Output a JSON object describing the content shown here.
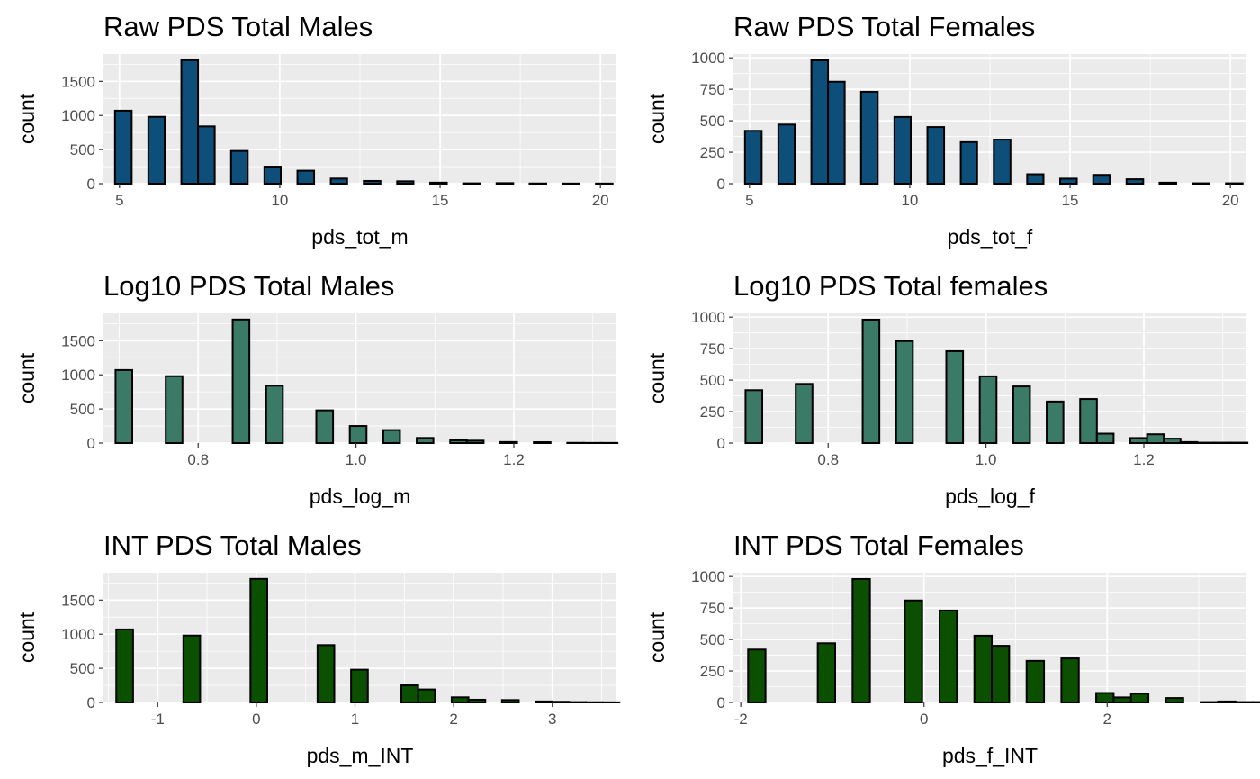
{
  "colors": {
    "panel_bg": "#EBEBEB",
    "grid_major": "#FFFFFF",
    "bar_outline": "#000000",
    "tick_label": "#4D4D4D",
    "axis_title": "#000000",
    "title": "#000000",
    "bar_raw": "#0D4F78",
    "bar_log": "#3A7A66",
    "bar_int": "#0B4F00"
  },
  "chart_data": [
    {
      "type": "histogram",
      "title": "Raw PDS Total Males",
      "xlabel": "pds_tot_m",
      "ylabel": "count",
      "fill_color": "#0D4F78",
      "xlim": [
        4.5,
        20.5
      ],
      "ylim": [
        0,
        1900
      ],
      "xticks": [
        5,
        10,
        15,
        20
      ],
      "xtick_labels": [
        "5",
        "10",
        "15",
        "20"
      ],
      "yticks": [
        0,
        500,
        1000,
        1500
      ],
      "ytick_labels": [
        "0",
        "500",
        "1000",
        "1500"
      ],
      "bins": [
        [
          4.86,
          5.38,
          1070
        ],
        [
          5.38,
          5.9,
          0
        ],
        [
          5.9,
          6.41,
          980
        ],
        [
          6.41,
          6.93,
          0
        ],
        [
          6.93,
          7.45,
          1810
        ],
        [
          7.45,
          7.97,
          840
        ],
        [
          7.97,
          8.48,
          0
        ],
        [
          8.48,
          9.0,
          480
        ],
        [
          9.0,
          9.52,
          0
        ],
        [
          9.52,
          10.03,
          250
        ],
        [
          10.03,
          10.55,
          0
        ],
        [
          10.55,
          11.07,
          190
        ],
        [
          11.07,
          11.59,
          0
        ],
        [
          11.59,
          12.1,
          75
        ],
        [
          12.1,
          12.62,
          0
        ],
        [
          12.62,
          13.14,
          40
        ],
        [
          13.14,
          13.66,
          0
        ],
        [
          13.66,
          14.17,
          35
        ],
        [
          14.17,
          14.69,
          0
        ],
        [
          14.69,
          15.21,
          15
        ],
        [
          15.21,
          15.72,
          0
        ],
        [
          15.72,
          16.24,
          5
        ],
        [
          16.24,
          16.76,
          0
        ],
        [
          16.76,
          17.28,
          8
        ],
        [
          17.28,
          17.79,
          0
        ],
        [
          17.79,
          18.31,
          3
        ],
        [
          18.31,
          18.83,
          0
        ],
        [
          18.83,
          19.34,
          2
        ],
        [
          19.34,
          19.86,
          0
        ],
        [
          19.86,
          20.38,
          2
        ]
      ]
    },
    {
      "type": "histogram",
      "title": "Raw PDS Total Females",
      "xlabel": "pds_tot_f",
      "ylabel": "count",
      "fill_color": "#0D4F78",
      "xlim": [
        4.5,
        20.5
      ],
      "ylim": [
        0,
        1030
      ],
      "xticks": [
        5,
        10,
        15,
        20
      ],
      "xtick_labels": [
        "5",
        "10",
        "15",
        "20"
      ],
      "yticks": [
        0,
        250,
        500,
        750,
        1000
      ],
      "ytick_labels": [
        "0",
        "250",
        "500",
        "750",
        "1000"
      ],
      "bins": [
        [
          4.86,
          5.38,
          420
        ],
        [
          5.38,
          5.9,
          0
        ],
        [
          5.9,
          6.41,
          470
        ],
        [
          6.41,
          6.93,
          0
        ],
        [
          6.93,
          7.45,
          980
        ],
        [
          7.45,
          7.97,
          810
        ],
        [
          7.97,
          8.48,
          0
        ],
        [
          8.48,
          9.0,
          730
        ],
        [
          9.0,
          9.52,
          0
        ],
        [
          9.52,
          10.03,
          530
        ],
        [
          10.03,
          10.55,
          0
        ],
        [
          10.55,
          11.07,
          450
        ],
        [
          11.07,
          11.59,
          0
        ],
        [
          11.59,
          12.1,
          330
        ],
        [
          12.1,
          12.62,
          0
        ],
        [
          12.62,
          13.14,
          350
        ],
        [
          13.14,
          13.66,
          0
        ],
        [
          13.66,
          14.17,
          75
        ],
        [
          14.17,
          14.69,
          0
        ],
        [
          14.69,
          15.21,
          40
        ],
        [
          15.21,
          15.72,
          0
        ],
        [
          15.72,
          16.24,
          70
        ],
        [
          16.24,
          16.76,
          0
        ],
        [
          16.76,
          17.28,
          35
        ],
        [
          17.28,
          17.79,
          0
        ],
        [
          17.79,
          18.31,
          8
        ],
        [
          18.31,
          18.83,
          0
        ],
        [
          18.83,
          19.34,
          3
        ],
        [
          19.34,
          19.86,
          0
        ],
        [
          19.86,
          20.38,
          3
        ]
      ]
    },
    {
      "type": "histogram",
      "title": "Log10 PDS Total Males",
      "xlabel": "pds_log_m",
      "ylabel": "count",
      "fill_color": "#3A7A66",
      "xlim": [
        0.68,
        1.33
      ],
      "ylim": [
        0,
        1900
      ],
      "xticks": [
        0.8,
        1.0,
        1.2
      ],
      "xtick_labels": [
        "0.8",
        "1.0",
        "1.2"
      ],
      "yticks": [
        0,
        500,
        1000,
        1500
      ],
      "ytick_labels": [
        "0",
        "500",
        "1000",
        "1500"
      ],
      "bins": [
        [
          0.6953,
          0.7165,
          1070
        ],
        [
          0.7165,
          0.7377,
          0
        ],
        [
          0.7377,
          0.7589,
          0
        ],
        [
          0.7589,
          0.7801,
          980
        ],
        [
          0.7801,
          0.8013,
          0
        ],
        [
          0.8013,
          0.8225,
          0
        ],
        [
          0.8225,
          0.8437,
          0
        ],
        [
          0.8437,
          0.8649,
          1810
        ],
        [
          0.8649,
          0.8861,
          0
        ],
        [
          0.8861,
          0.9073,
          840
        ],
        [
          0.9073,
          0.9285,
          0
        ],
        [
          0.9285,
          0.9497,
          0
        ],
        [
          0.9497,
          0.9709,
          480
        ],
        [
          0.9709,
          0.9921,
          0
        ],
        [
          0.9921,
          1.0133,
          250
        ],
        [
          1.0133,
          1.0345,
          0
        ],
        [
          1.0345,
          1.0557,
          190
        ],
        [
          1.0557,
          1.0769,
          0
        ],
        [
          1.0769,
          1.0981,
          75
        ],
        [
          1.0981,
          1.1193,
          0
        ],
        [
          1.1193,
          1.1405,
          40
        ],
        [
          1.1405,
          1.1617,
          35
        ],
        [
          1.1617,
          1.1829,
          0
        ],
        [
          1.1829,
          1.2041,
          15
        ],
        [
          1.2041,
          1.2253,
          0
        ],
        [
          1.2253,
          1.2465,
          13
        ],
        [
          1.2465,
          1.2677,
          0
        ],
        [
          1.2677,
          1.2889,
          3
        ],
        [
          1.2889,
          1.3101,
          2
        ],
        [
          1.3101,
          1.3313,
          2
        ]
      ]
    },
    {
      "type": "histogram",
      "title": "Log10 PDS Total females",
      "xlabel": "pds_log_f",
      "ylabel": "count",
      "fill_color": "#3A7A66",
      "xlim": [
        0.68,
        1.33
      ],
      "ylim": [
        0,
        1030
      ],
      "xticks": [
        0.8,
        1.0,
        1.2
      ],
      "xtick_labels": [
        "0.8",
        "1.0",
        "1.2"
      ],
      "yticks": [
        0,
        250,
        500,
        750,
        1000
      ],
      "ytick_labels": [
        "0",
        "250",
        "500",
        "750",
        "1000"
      ],
      "bins": [
        [
          0.6953,
          0.7165,
          420
        ],
        [
          0.7165,
          0.7377,
          0
        ],
        [
          0.7377,
          0.7589,
          0
        ],
        [
          0.7589,
          0.7801,
          470
        ],
        [
          0.7801,
          0.8013,
          0
        ],
        [
          0.8013,
          0.8225,
          0
        ],
        [
          0.8225,
          0.8437,
          0
        ],
        [
          0.8437,
          0.8649,
          980
        ],
        [
          0.8649,
          0.8861,
          0
        ],
        [
          0.8861,
          0.9073,
          810
        ],
        [
          0.9073,
          0.9285,
          0
        ],
        [
          0.9285,
          0.9497,
          0
        ],
        [
          0.9497,
          0.9709,
          730
        ],
        [
          0.9709,
          0.9921,
          0
        ],
        [
          0.9921,
          1.0133,
          530
        ],
        [
          1.0133,
          1.0345,
          0
        ],
        [
          1.0345,
          1.0557,
          450
        ],
        [
          1.0557,
          1.0769,
          0
        ],
        [
          1.0769,
          1.0981,
          330
        ],
        [
          1.0981,
          1.1193,
          0
        ],
        [
          1.1193,
          1.1405,
          350
        ],
        [
          1.1405,
          1.1617,
          75
        ],
        [
          1.1617,
          1.1829,
          0
        ],
        [
          1.1829,
          1.2041,
          40
        ],
        [
          1.2041,
          1.2253,
          70
        ],
        [
          1.2253,
          1.2465,
          35
        ],
        [
          1.2465,
          1.2677,
          8
        ],
        [
          1.2677,
          1.2889,
          3
        ],
        [
          1.2889,
          1.3101,
          3
        ],
        [
          1.3101,
          1.3313,
          3
        ]
      ]
    },
    {
      "type": "histogram",
      "title": "INT PDS Total Males",
      "xlabel": "pds_m_INT",
      "ylabel": "count",
      "fill_color": "#0B4F00",
      "xlim": [
        -1.55,
        3.65
      ],
      "ylim": [
        0,
        1900
      ],
      "xticks": [
        -1,
        0,
        1,
        2,
        3
      ],
      "xtick_labels": [
        "-1",
        "0",
        "1",
        "2",
        "3"
      ],
      "yticks": [
        0,
        500,
        1000,
        1500
      ],
      "ytick_labels": [
        "0",
        "500",
        "1000",
        "1500"
      ],
      "bins": [
        [
          -1.42,
          -1.25,
          1070
        ],
        [
          -1.25,
          -1.08,
          0
        ],
        [
          -1.08,
          -0.91,
          0
        ],
        [
          -0.91,
          -0.74,
          0
        ],
        [
          -0.74,
          -0.57,
          980
        ],
        [
          -0.57,
          -0.4,
          0
        ],
        [
          -0.4,
          -0.23,
          0
        ],
        [
          -0.23,
          -0.06,
          0
        ],
        [
          -0.06,
          0.11,
          1810
        ],
        [
          0.11,
          0.28,
          0
        ],
        [
          0.28,
          0.45,
          0
        ],
        [
          0.45,
          0.62,
          0
        ],
        [
          0.62,
          0.79,
          840
        ],
        [
          0.79,
          0.96,
          0
        ],
        [
          0.96,
          1.13,
          480
        ],
        [
          1.13,
          1.3,
          0
        ],
        [
          1.3,
          1.47,
          0
        ],
        [
          1.47,
          1.64,
          250
        ],
        [
          1.64,
          1.81,
          190
        ],
        [
          1.81,
          1.98,
          0
        ],
        [
          1.98,
          2.15,
          75
        ],
        [
          2.15,
          2.32,
          40
        ],
        [
          2.32,
          2.49,
          0
        ],
        [
          2.49,
          2.66,
          35
        ],
        [
          2.66,
          2.83,
          0
        ],
        [
          2.83,
          3.0,
          15
        ],
        [
          3.0,
          3.17,
          10
        ],
        [
          3.17,
          3.34,
          5
        ],
        [
          3.34,
          3.51,
          3
        ],
        [
          3.51,
          3.68,
          2
        ]
      ]
    },
    {
      "type": "histogram",
      "title": "INT PDS Total Females",
      "xlabel": "pds_f_INT",
      "ylabel": "count",
      "fill_color": "#0B4F00",
      "xlim": [
        -2.08,
        3.52
      ],
      "ylim": [
        0,
        1030
      ],
      "xticks": [
        -2,
        0,
        2
      ],
      "xtick_labels": [
        "-2",
        "0",
        "2"
      ],
      "yticks": [
        0,
        250,
        500,
        750,
        1000
      ],
      "ytick_labels": [
        "0",
        "250",
        "500",
        "750",
        "1000"
      ],
      "bins": [
        [
          -1.92,
          -1.73,
          420
        ],
        [
          -1.73,
          -1.54,
          0
        ],
        [
          -1.54,
          -1.35,
          0
        ],
        [
          -1.35,
          -1.16,
          0
        ],
        [
          -1.16,
          -0.97,
          470
        ],
        [
          -0.97,
          -0.78,
          0
        ],
        [
          -0.78,
          -0.59,
          980
        ],
        [
          -0.59,
          -0.4,
          0
        ],
        [
          -0.4,
          -0.21,
          0
        ],
        [
          -0.21,
          -0.02,
          810
        ],
        [
          -0.02,
          0.17,
          0
        ],
        [
          0.17,
          0.36,
          730
        ],
        [
          0.36,
          0.55,
          0
        ],
        [
          0.55,
          0.74,
          530
        ],
        [
          0.74,
          0.93,
          450
        ],
        [
          0.93,
          1.12,
          0
        ],
        [
          1.12,
          1.31,
          330
        ],
        [
          1.31,
          1.5,
          0
        ],
        [
          1.5,
          1.69,
          350
        ],
        [
          1.69,
          1.88,
          0
        ],
        [
          1.88,
          2.07,
          75
        ],
        [
          2.07,
          2.26,
          40
        ],
        [
          2.26,
          2.45,
          70
        ],
        [
          2.45,
          2.64,
          0
        ],
        [
          2.64,
          2.83,
          35
        ],
        [
          2.83,
          3.02,
          0
        ],
        [
          3.02,
          3.21,
          3
        ],
        [
          3.21,
          3.4,
          8
        ],
        [
          3.4,
          3.59,
          3
        ],
        [
          3.59,
          3.78,
          3
        ]
      ]
    }
  ]
}
